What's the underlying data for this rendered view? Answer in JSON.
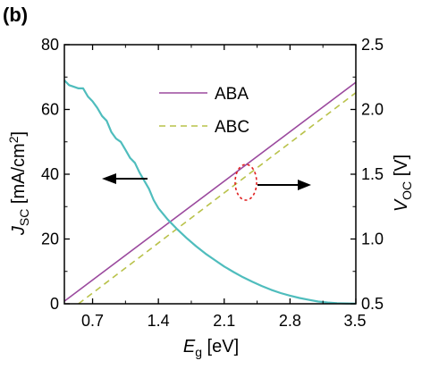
{
  "chart_data": {
    "type": "line",
    "panel_label": "(b)",
    "x": {
      "label_main": "E",
      "label_sub": "g",
      "label_unit": " [eV]",
      "range": [
        0.4,
        3.5
      ],
      "ticks": [
        0.7,
        1.4,
        2.1,
        2.8,
        3.5
      ],
      "tick_labels": [
        "0.7",
        "1.4",
        "2.1",
        "2.8",
        "3.5"
      ]
    },
    "y_left": {
      "label_main": "J",
      "label_sub": "SC",
      "label_unit": " [mA/cm",
      "label_sup": "2",
      "label_close": "]",
      "range": [
        0,
        80
      ],
      "ticks": [
        0,
        20,
        40,
        60,
        80
      ],
      "tick_labels": [
        "0",
        "20",
        "40",
        "60",
        "80"
      ]
    },
    "y_right": {
      "label_main": "V",
      "label_sub": "OC",
      "label_unit": " [V]",
      "range": [
        0.5,
        2.5
      ],
      "ticks": [
        0.5,
        1.0,
        1.5,
        2.0,
        2.5
      ],
      "tick_labels": [
        "0.5",
        "1.0",
        "1.5",
        "2.0",
        "2.5"
      ]
    },
    "series": [
      {
        "name": "ABA",
        "axis": "right",
        "color": "#9b4a9e",
        "dash": "solid",
        "x": [
          0.4,
          3.5
        ],
        "y": [
          0.52,
          2.21
        ]
      },
      {
        "name": "ABC",
        "axis": "right",
        "color": "#b9c24a",
        "dash": "dashed",
        "x": [
          0.55,
          3.5
        ],
        "y": [
          0.5,
          2.13
        ]
      },
      {
        "axis": "left",
        "color": "#4fbdbd",
        "dash": "solid",
        "x": [
          0.4,
          0.45,
          0.5,
          0.55,
          0.6,
          0.65,
          0.7,
          0.75,
          0.8,
          0.85,
          0.9,
          0.95,
          1.0,
          1.05,
          1.1,
          1.15,
          1.2,
          1.25,
          1.3,
          1.35,
          1.4,
          1.5,
          1.6,
          1.7,
          1.8,
          1.9,
          2.0,
          2.1,
          2.2,
          2.3,
          2.4,
          2.5,
          2.6,
          2.7,
          2.8,
          2.9,
          3.0,
          3.1,
          3.2,
          3.3,
          3.4,
          3.5
        ],
        "y": [
          69,
          67.5,
          67,
          66.5,
          66.5,
          64,
          62.5,
          60.5,
          58,
          56.5,
          53,
          51,
          50,
          47.5,
          45,
          43.5,
          40.5,
          38,
          35.5,
          32,
          29.5,
          26,
          23,
          20.3,
          17.8,
          15.5,
          13.5,
          11.5,
          9.8,
          8.2,
          6.8,
          5.5,
          4.3,
          3.3,
          2.5,
          1.8,
          1.2,
          0.7,
          0.4,
          0.2,
          0.1,
          0.05
        ]
      }
    ],
    "legend": {
      "placement": "top-center",
      "entries": [
        "ABA",
        "ABC"
      ]
    }
  }
}
